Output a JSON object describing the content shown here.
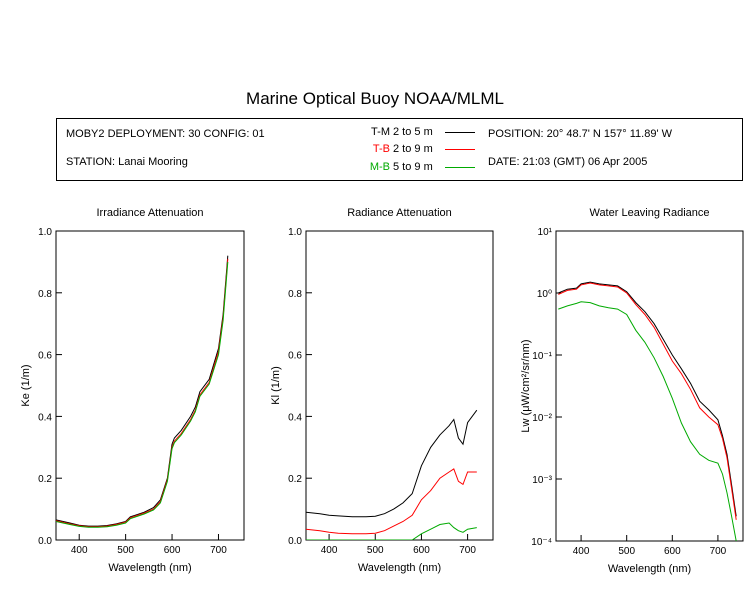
{
  "title": "Marine Optical Buoy NOAA/MLML",
  "info": {
    "deployment": "MOBY2 DEPLOYMENT: 30 CONFIG: 01",
    "station": "STATION: Lanai Mooring",
    "position": "POSITION: 20° 48.7' N   157° 11.89' W",
    "date": "DATE: 21:03 (GMT) 06 Apr 2005"
  },
  "legend": [
    {
      "name": "T-M",
      "range": "2 to 5  m",
      "color": "#000000",
      "text_color": "#000000"
    },
    {
      "name": "T-B",
      "range": "2 to 9  m",
      "color": "#ff0000",
      "text_color": "#ff0000"
    },
    {
      "name": "M-B",
      "range": "5 to 9  m",
      "color": "#00aa00",
      "text_color": "#00aa00"
    }
  ],
  "chart_data": [
    {
      "type": "line",
      "title": "Irradiance Attenuation",
      "xlabel": "Wavelength (nm)",
      "ylabel": "Ke  (1/m)",
      "xlim": [
        350,
        755
      ],
      "ylim": [
        0,
        1.0
      ],
      "xticks": [
        400,
        500,
        600,
        700
      ],
      "yticks": [
        0.0,
        0.2,
        0.4,
        0.6,
        0.8,
        1.0
      ],
      "ytick_labels": [
        "0.0",
        "0.2",
        "0.4",
        "0.6",
        "0.8",
        "1.0"
      ],
      "x": [
        350,
        380,
        400,
        420,
        440,
        460,
        480,
        500,
        510,
        520,
        540,
        560,
        575,
        590,
        600,
        605,
        620,
        640,
        650,
        660,
        680,
        700,
        710,
        720
      ],
      "series": [
        {
          "name": "T-M",
          "color": "#000000",
          "values": [
            0.065,
            0.055,
            0.048,
            0.045,
            0.045,
            0.047,
            0.052,
            0.06,
            0.075,
            0.08,
            0.09,
            0.105,
            0.13,
            0.2,
            0.31,
            0.33,
            0.355,
            0.4,
            0.43,
            0.48,
            0.52,
            0.62,
            0.73,
            0.92
          ]
        },
        {
          "name": "T-B",
          "color": "#ff0000",
          "values": [
            0.062,
            0.052,
            0.046,
            0.043,
            0.043,
            0.045,
            0.05,
            0.058,
            0.072,
            0.077,
            0.087,
            0.1,
            0.125,
            0.195,
            0.3,
            0.32,
            0.345,
            0.39,
            0.42,
            0.47,
            0.51,
            0.61,
            0.72,
            0.91
          ]
        },
        {
          "name": "M-B",
          "color": "#00aa00",
          "values": [
            0.06,
            0.05,
            0.044,
            0.041,
            0.041,
            0.043,
            0.048,
            0.055,
            0.069,
            0.074,
            0.084,
            0.097,
            0.12,
            0.19,
            0.295,
            0.315,
            0.34,
            0.385,
            0.415,
            0.465,
            0.505,
            0.6,
            0.71,
            0.9
          ]
        }
      ]
    },
    {
      "type": "line",
      "title": "Radiance Attenuation",
      "xlabel": "Wavelength (nm)",
      "ylabel": "Kl  (1/m)",
      "xlim": [
        350,
        755
      ],
      "ylim": [
        0,
        1.0
      ],
      "xticks": [
        400,
        500,
        600,
        700
      ],
      "yticks": [
        0.0,
        0.2,
        0.4,
        0.6,
        0.8,
        1.0
      ],
      "ytick_labels": [
        "0.0",
        "0.2",
        "0.4",
        "0.6",
        "0.8",
        "1.0"
      ],
      "x": [
        350,
        380,
        400,
        420,
        450,
        480,
        500,
        520,
        540,
        560,
        580,
        600,
        620,
        640,
        660,
        670,
        680,
        690,
        700,
        720
      ],
      "series": [
        {
          "name": "T-M",
          "color": "#000000",
          "values": [
            0.09,
            0.085,
            0.08,
            0.078,
            0.075,
            0.075,
            0.077,
            0.085,
            0.1,
            0.12,
            0.15,
            0.24,
            0.3,
            0.34,
            0.37,
            0.39,
            0.33,
            0.31,
            0.38,
            0.42
          ]
        },
        {
          "name": "T-B",
          "color": "#ff0000",
          "values": [
            0.035,
            0.03,
            0.025,
            0.022,
            0.02,
            0.02,
            0.022,
            0.03,
            0.045,
            0.06,
            0.08,
            0.13,
            0.16,
            0.2,
            0.22,
            0.23,
            0.19,
            0.18,
            0.22,
            0.22
          ]
        },
        {
          "name": "M-B",
          "color": "#00aa00",
          "values": [
            0.0,
            0.0,
            0.0,
            0.0,
            0.0,
            0.0,
            0.0,
            0.0,
            0.0,
            0.0,
            0.0,
            0.02,
            0.035,
            0.05,
            0.055,
            0.04,
            0.03,
            0.025,
            0.035,
            0.04
          ]
        }
      ]
    },
    {
      "type": "line",
      "title": "Water Leaving Radiance",
      "xlabel": "Wavelength (nm)",
      "ylabel": "Lw  (μW/cm²/sr/nm)",
      "xlim": [
        345,
        755
      ],
      "ylim": [
        0.0001,
        10
      ],
      "yscale": "log",
      "xticks": [
        400,
        500,
        600,
        700
      ],
      "yticks": [
        0.0001,
        0.001,
        0.01,
        0.1,
        1,
        10
      ],
      "ytick_labels": [
        "10⁻⁴",
        "10⁻³",
        "10⁻²",
        "10⁻¹",
        "10⁰",
        "10¹"
      ],
      "x": [
        350,
        370,
        390,
        400,
        420,
        440,
        460,
        480,
        500,
        520,
        540,
        560,
        580,
        600,
        620,
        640,
        660,
        680,
        700,
        710,
        720,
        730,
        740
      ],
      "series": [
        {
          "name": "Lw",
          "color": "#000000",
          "values": [
            1.0,
            1.15,
            1.2,
            1.4,
            1.5,
            1.4,
            1.35,
            1.3,
            1.05,
            0.7,
            0.5,
            0.32,
            0.18,
            0.1,
            0.06,
            0.035,
            0.018,
            0.013,
            0.009,
            0.005,
            0.0025,
            0.0008,
            0.00025
          ]
        },
        {
          "name": "Lw",
          "color": "#ff0000",
          "values": [
            0.95,
            1.1,
            1.15,
            1.35,
            1.45,
            1.35,
            1.3,
            1.25,
            1.0,
            0.65,
            0.45,
            0.28,
            0.15,
            0.08,
            0.05,
            0.028,
            0.014,
            0.01,
            0.0075,
            0.0045,
            0.0022,
            0.0007,
            0.00022
          ]
        },
        {
          "name": "Lw",
          "color": "#00aa00",
          "values": [
            0.55,
            0.62,
            0.68,
            0.72,
            0.7,
            0.62,
            0.58,
            0.55,
            0.45,
            0.25,
            0.16,
            0.09,
            0.045,
            0.02,
            0.008,
            0.004,
            0.0025,
            0.002,
            0.0018,
            0.0012,
            0.0006,
            0.00025,
            0.0001
          ]
        }
      ]
    }
  ]
}
